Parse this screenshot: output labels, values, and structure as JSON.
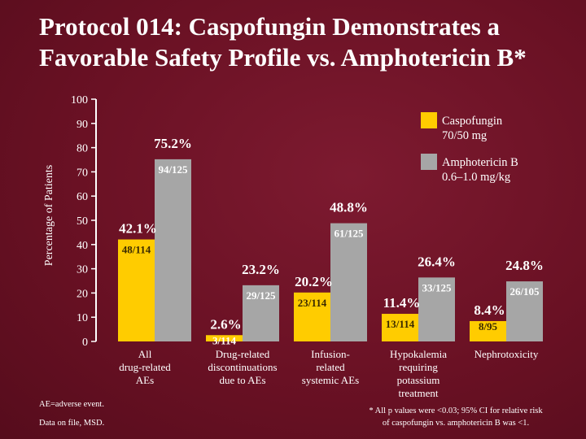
{
  "title": "Protocol 014: Caspofungin Demonstrates a Favorable Safety Profile vs. Amphotericin B*",
  "chart_data": {
    "type": "bar",
    "title": "Protocol 014: Caspofungin Demonstrates a Favorable Safety Profile vs. Amphotericin B*",
    "ylabel": "Percentage of Patients",
    "xlabel": "",
    "ylim": [
      0,
      100
    ],
    "yticks": [
      "0",
      "10",
      "20",
      "30",
      "40",
      "50",
      "60",
      "70",
      "80",
      "90",
      "100"
    ],
    "grid": false,
    "legend_position": "top-right",
    "categories": [
      "All drug-related AEs",
      "Drug-related discontinuations due to AEs",
      "Infusion-related systemic AEs",
      "Hypokalemia requiring potassium treatment",
      "Nephrotoxicity"
    ],
    "series": [
      {
        "name": "Caspofungin 70/50 mg",
        "color": "#ffcc00",
        "values": [
          42.1,
          2.6,
          20.2,
          11.4,
          8.4
        ],
        "value_labels": [
          "42.1%",
          "2.6%",
          "20.2%",
          "11.4%",
          "8.4%"
        ],
        "count_labels": [
          "48/114",
          "3/114",
          "23/114",
          "13/114",
          "8/95"
        ]
      },
      {
        "name": "Amphotericin B 0.6–1.0 mg/kg",
        "color": "#a6a6a6",
        "values": [
          75.2,
          23.2,
          48.8,
          26.4,
          24.8
        ],
        "value_labels": [
          "75.2%",
          "23.2%",
          "48.8%",
          "26.4%",
          "24.8%"
        ],
        "count_labels": [
          "94/125",
          "29/125",
          "61/125",
          "33/125",
          "26/105"
        ]
      }
    ]
  },
  "legend": {
    "caspofungin_line1": "Caspofungin",
    "caspofungin_line2": "70/50 mg",
    "ampho_line1": "Amphotericin B",
    "ampho_line2": "0.6–1.0 mg/kg"
  },
  "category_lines": [
    [
      "All",
      "drug-related",
      "AEs"
    ],
    [
      "Drug-related",
      "discontinuations",
      "due to AEs"
    ],
    [
      "Infusion-",
      "related",
      "systemic AEs"
    ],
    [
      "Hypokalemia",
      "requiring",
      "potassium",
      "treatment"
    ],
    [
      "Nephrotoxicity"
    ]
  ],
  "footnotes": {
    "ae_def": "AE=adverse event.",
    "source": "Data on file, MSD.",
    "pvalue_line1": "* All p values were <0.03; 95% CI for relative risk",
    "pvalue_line2": "of caspofungin vs. amphotericin B was <1."
  }
}
